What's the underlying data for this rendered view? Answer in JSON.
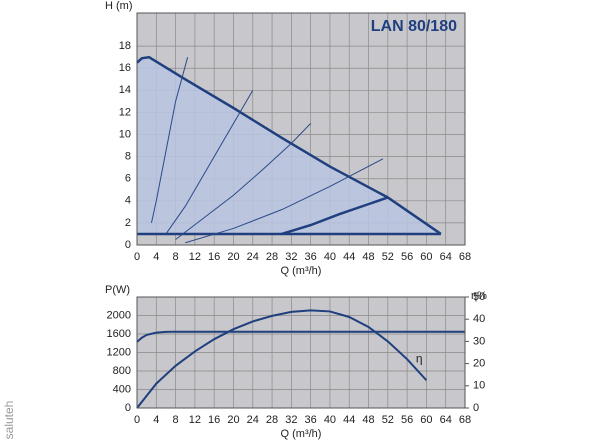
{
  "chart_data": [
    {
      "type": "line",
      "title": "LAN 80/180",
      "ylabel": "H (m)",
      "xlabel": "Q (m³/h)",
      "xlim": [
        0,
        68
      ],
      "xticks": [
        0,
        4,
        8,
        12,
        16,
        20,
        24,
        28,
        32,
        36,
        40,
        44,
        48,
        52,
        56,
        60,
        64,
        68
      ],
      "ylim": [
        0,
        21
      ],
      "yticks": [
        0,
        2,
        4,
        6,
        8,
        10,
        12,
        14,
        16,
        18
      ],
      "grid": true,
      "grid_color": "#8a8a8a",
      "background": "#c8c8cc",
      "series": [
        {
          "color": "#1f3f7f",
          "width": 2.5,
          "fill": "#b8c4e0",
          "x": [
            0,
            1,
            2.5,
            10,
            20,
            30,
            40,
            52,
            63
          ],
          "values": [
            16.5,
            16.9,
            17,
            15.0,
            12.4,
            9.7,
            7.1,
            4.3,
            1
          ]
        },
        {
          "color": "#1f3f7f",
          "width": 2.5,
          "x": [
            0,
            63
          ],
          "values": [
            1,
            1
          ]
        },
        {
          "color": "#2a4a8a",
          "width": 1,
          "x": [
            3,
            4,
            6,
            8,
            10.5
          ],
          "values": [
            2,
            4,
            8.5,
            13,
            17
          ]
        },
        {
          "color": "#2a4a8a",
          "width": 1,
          "x": [
            6,
            10,
            14,
            18,
            22,
            24
          ],
          "values": [
            1,
            3.5,
            6.5,
            9.5,
            12.5,
            14
          ]
        },
        {
          "color": "#2a4a8a",
          "width": 1,
          "x": [
            8,
            14,
            20,
            26,
            32,
            36
          ],
          "values": [
            0.5,
            2.5,
            4.5,
            6.8,
            9.2,
            11
          ]
        },
        {
          "color": "#2a4a8a",
          "width": 1,
          "x": [
            10,
            20,
            30,
            40,
            51
          ],
          "values": [
            0.2,
            1.5,
            3.2,
            5.3,
            7.8
          ]
        },
        {
          "color": "#1f3f7f",
          "width": 2.5,
          "x": [
            30,
            36,
            42,
            48,
            52
          ],
          "values": [
            1,
            1.8,
            2.8,
            3.7,
            4.3
          ]
        }
      ]
    },
    {
      "type": "line",
      "ylabel": "P(W)",
      "y2label": "η%",
      "xlabel": "Q (m³/h)",
      "annotation": "η",
      "xlim": [
        0,
        68
      ],
      "xticks": [
        0,
        4,
        8,
        12,
        16,
        20,
        24,
        28,
        32,
        36,
        40,
        44,
        48,
        52,
        56,
        60,
        64,
        68
      ],
      "ylim": [
        0,
        2400
      ],
      "yticks": [
        0,
        400,
        800,
        1200,
        1600,
        2000
      ],
      "y2lim": [
        0,
        50
      ],
      "y2ticks": [
        0,
        10,
        20,
        30,
        40,
        50
      ],
      "grid": true,
      "grid_color": "#8a8a8a",
      "background": "#c8c8cc",
      "series": [
        {
          "color": "#1f3f7f",
          "width": 2,
          "x": [
            0,
            1,
            2,
            4,
            6,
            8,
            68
          ],
          "values": [
            1430,
            1520,
            1580,
            1630,
            1645,
            1650,
            1650
          ]
        },
        {
          "color": "#1f3f7f",
          "width": 2,
          "axis": "y2",
          "x": [
            0,
            4,
            8,
            12,
            16,
            20,
            24,
            28,
            32,
            36,
            40,
            44,
            48,
            52,
            56,
            60
          ],
          "values": [
            0,
            11,
            19,
            25.5,
            31,
            35.5,
            39,
            41.5,
            43.3,
            44,
            43.5,
            41,
            36.5,
            30,
            22,
            12.5
          ]
        }
      ]
    }
  ],
  "watermark": "saluteh"
}
